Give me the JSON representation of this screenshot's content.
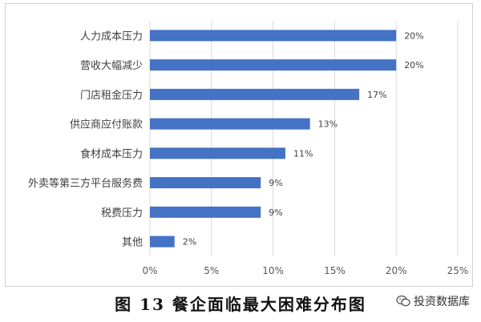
{
  "chart_data": {
    "type": "bar",
    "orientation": "horizontal",
    "categories": [
      "人力成本压力",
      "营收大幅减少",
      "门店租金压力",
      "供应商应付账款",
      "食材成本压力",
      "外卖等第三方平台服务费",
      "税费压力",
      "其他"
    ],
    "values": [
      20,
      20,
      17,
      13,
      11,
      9,
      9,
      2
    ],
    "value_labels": [
      "20%",
      "20%",
      "17%",
      "13%",
      "11%",
      "9%",
      "9%",
      "2%"
    ],
    "xticks": [
      "0%",
      "5%",
      "10%",
      "15%",
      "20%",
      "25%"
    ],
    "xlim": [
      0,
      25
    ],
    "grid": "vertical",
    "bar_color": "#4472C4",
    "title": "图 13  餐企面临最大困难分布图"
  },
  "watermark": {
    "text": "投资数据库",
    "icon": "wechat-icon"
  }
}
